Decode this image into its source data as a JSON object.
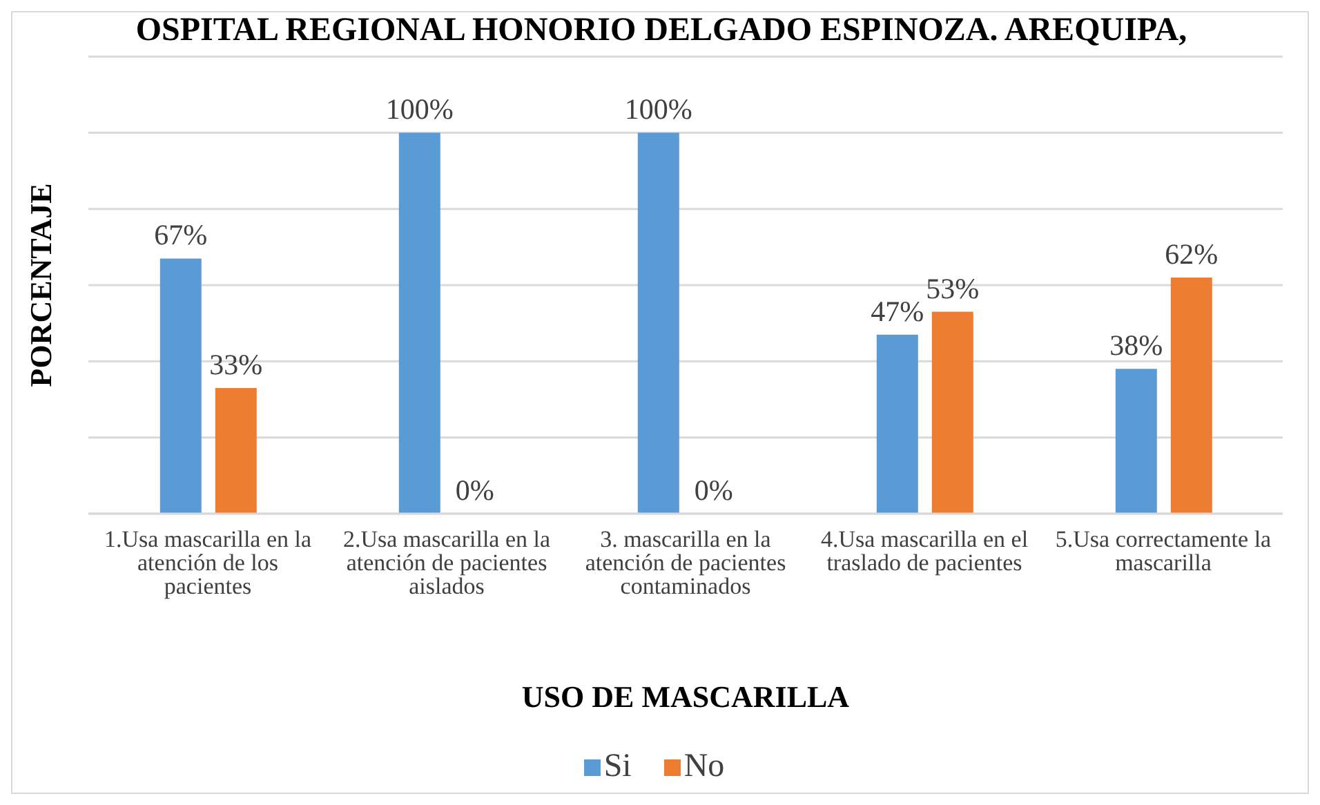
{
  "chart_data": {
    "type": "bar",
    "title": "OSPITAL REGIONAL HONORIO DELGADO ESPINOZA. AREQUIPA,",
    "xlabel": "USO DE MASCARILLA",
    "ylabel": "PORCENTAJE",
    "categories": [
      "1.Usa mascarilla en la atención de los pacientes",
      "2.Usa mascarilla en la atención de pacientes aislados",
      "3. mascarilla en la atención de pacientes contaminados",
      "4.Usa mascarilla en el traslado de pacientes",
      "5.Usa correctamente la mascarilla"
    ],
    "series": [
      {
        "name": "Si",
        "color": "#5b9bd5",
        "values": [
          67,
          100,
          100,
          47,
          38
        ],
        "value_labels": [
          "67%",
          "100%",
          "100%",
          "47%",
          "38%"
        ]
      },
      {
        "name": "No",
        "color": "#ed7d31",
        "values": [
          33,
          0,
          0,
          53,
          62
        ],
        "value_labels": [
          "33%",
          "0%",
          "0%",
          "53%",
          "62%"
        ]
      }
    ],
    "ylim": [
      0,
      120
    ],
    "yticks": [
      0,
      20,
      40,
      60,
      80,
      100,
      120
    ],
    "tick_labels": "x",
    "grid": "y",
    "legend": "bottom"
  }
}
